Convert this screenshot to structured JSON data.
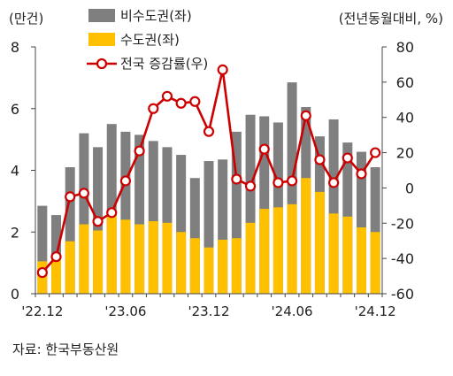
{
  "source_note": "자료: 한국부동산원",
  "colors": {
    "non_capital": "#7f7f7f",
    "capital": "#ffc000",
    "national": "#cc0000"
  },
  "chart_data": {
    "type": "bar",
    "left_axis": {
      "unit_label": "(만건)",
      "ylim": [
        0,
        8
      ],
      "ticks": [
        "0",
        "2",
        "4",
        "6",
        "8"
      ]
    },
    "right_axis": {
      "unit_label": "(전년동월대비, %)",
      "ylim": [
        -60,
        80
      ],
      "ticks": [
        "-60",
        "-40",
        "-20",
        "0",
        "20",
        "40",
        "60",
        "80"
      ]
    },
    "x_tick_labels": [
      "'22.12",
      "'23.06",
      "'23.12",
      "'24.06",
      "'24.12"
    ],
    "x_tick_indices": [
      0,
      6,
      12,
      18,
      24
    ],
    "categories": [
      "22.12",
      "23.01",
      "23.02",
      "23.03",
      "23.04",
      "23.05",
      "23.06",
      "23.07",
      "23.08",
      "23.09",
      "23.10",
      "23.11",
      "23.12",
      "24.01",
      "24.02",
      "24.03",
      "24.04",
      "24.05",
      "24.06",
      "24.07",
      "24.08",
      "24.09",
      "24.10",
      "24.11",
      "24.12"
    ],
    "series": [
      {
        "name": "비수도권(좌)",
        "axis": "left",
        "kind": "bar-total",
        "values": [
          2.85,
          2.55,
          4.1,
          5.2,
          4.75,
          5.5,
          5.25,
          5.15,
          4.95,
          4.75,
          4.5,
          3.75,
          4.3,
          4.35,
          5.25,
          5.8,
          5.75,
          5.55,
          6.85,
          6.05,
          5.1,
          5.65,
          4.9,
          4.6,
          4.1
        ]
      },
      {
        "name": "수도권(좌)",
        "axis": "left",
        "kind": "bar-inner",
        "values": [
          1.05,
          1.2,
          1.7,
          2.25,
          2.05,
          2.55,
          2.4,
          2.25,
          2.35,
          2.3,
          2.0,
          1.8,
          1.5,
          1.75,
          1.8,
          2.3,
          2.75,
          2.8,
          2.9,
          3.75,
          3.3,
          2.6,
          2.5,
          2.15,
          2.0
        ]
      },
      {
        "name": "전국 증감률(우)",
        "axis": "right",
        "kind": "line",
        "values": [
          -48,
          -39,
          -5,
          -3,
          -19,
          -14,
          4,
          21,
          45,
          52,
          48,
          49,
          32,
          67,
          5,
          1,
          22,
          3,
          4,
          41,
          16,
          3,
          17,
          8,
          20
        ]
      }
    ],
    "legend": [
      "비수도권(좌)",
      "수도권(좌)",
      "전국 증감률(우)"
    ],
    "legend_placement": "top-left",
    "grid": false
  }
}
